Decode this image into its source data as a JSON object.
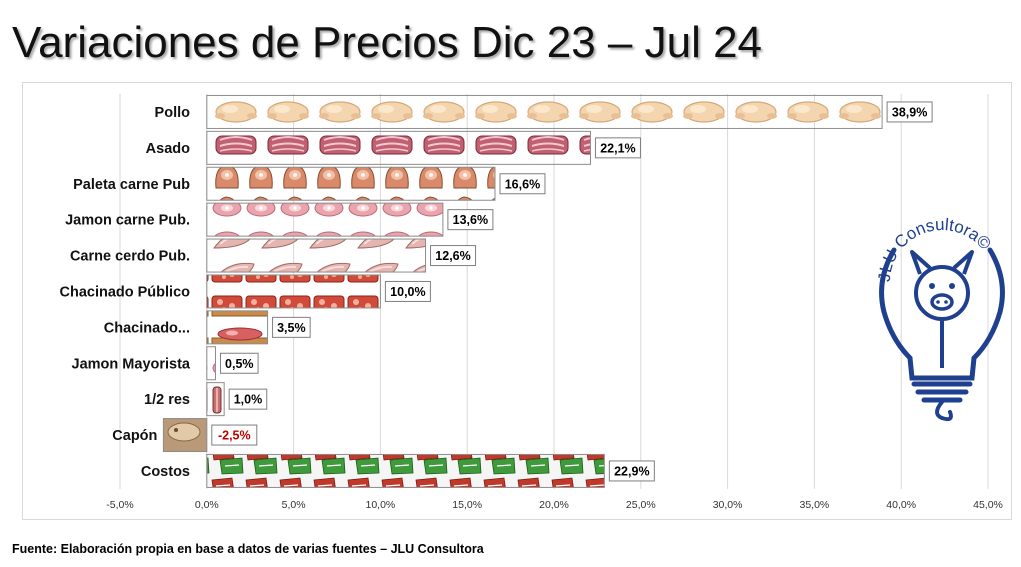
{
  "title": "Variaciones de Precios Dic 23 – Jul 24",
  "source": "Fuente: Elaboración propia en base a datos de varias fuentes –  JLU Consultora",
  "logo_text": "JLU Consultora©",
  "colors": {
    "bar_border": "#8c8c8c",
    "label_text": "#000000",
    "negative_label": "#c00000",
    "grid": "#d9d9d9",
    "logo_blue": "#1f3f8f"
  },
  "chart_data": {
    "type": "bar",
    "orientation": "horizontal",
    "categories": [
      "Pollo",
      "Asado",
      "Paleta carne Pub",
      "Jamon carne Pub.",
      "Carne cerdo Pub.",
      "Chacinado Público",
      "Chacinado...",
      "Jamon Mayorista",
      "1/2 res",
      "Capón",
      "Costos"
    ],
    "values": [
      38.9,
      22.1,
      16.6,
      13.6,
      12.6,
      10.0,
      3.5,
      0.5,
      1.0,
      -2.5,
      22.9
    ],
    "data_labels": [
      "38,9%",
      "22,1%",
      "16,6%",
      "13,6%",
      "12,6%",
      "10,0%",
      "3,5%",
      "0,5%",
      "1,0%",
      "-2,5%",
      "22,9%"
    ],
    "xlim": [
      -5,
      45
    ],
    "xticks": [
      -5,
      0,
      5,
      10,
      15,
      20,
      25,
      30,
      35,
      40,
      45
    ],
    "xtick_labels": [
      "-5,0%",
      "0,0%",
      "5,0%",
      "10,0%",
      "15,0%",
      "20,0%",
      "25,0%",
      "30,0%",
      "35,0%",
      "40,0%",
      "45,0%"
    ],
    "grid": true,
    "legend": "none",
    "fill_pictures": [
      "pollo",
      "asado",
      "paleta",
      "jamon",
      "carne-cerdo",
      "chacinado",
      "chacinado-tabla",
      "jamon",
      "media-res",
      "capon",
      "costos"
    ]
  }
}
